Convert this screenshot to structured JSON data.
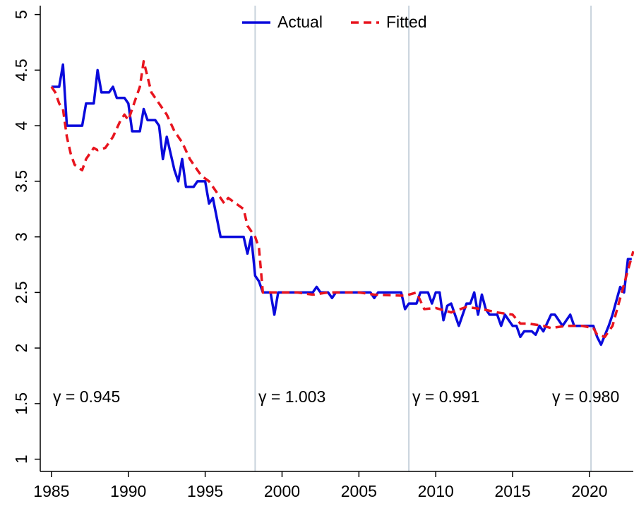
{
  "chart_data": {
    "type": "line",
    "xlim": [
      1984.27,
      2022.85
    ],
    "ylim": [
      0.89,
      5.08
    ],
    "xticks": [
      1985,
      1990,
      1995,
      2000,
      2005,
      2010,
      2015,
      2020
    ],
    "yticks": [
      1,
      1.5,
      2,
      2.5,
      3,
      3.5,
      4,
      4.5,
      5
    ],
    "legend": "top",
    "vlines": [
      1998.25,
      2008.25,
      2020.1
    ],
    "vline_color": "#c8d2dc",
    "annotations": [
      "γ = 0.945",
      "γ = 1.003",
      "γ = 0.991",
      "γ = 0.980"
    ],
    "series": [
      {
        "name": "Actual",
        "color": "#0a0adc",
        "dash": false,
        "x": [
          1985,
          1985.5,
          1985.75,
          1986,
          1987,
          1987.25,
          1987.75,
          1988,
          1988.25,
          1988.75,
          1989,
          1989.25,
          1989.75,
          1990,
          1990.25,
          1990.75,
          1991,
          1991.25,
          1991.75,
          1992,
          1992.25,
          1992.5,
          1993,
          1993.25,
          1993.5,
          1993.75,
          1994.25,
          1994.5,
          1995,
          1995.25,
          1995.5,
          1996,
          1997.5,
          1997.75,
          1998,
          1998.25,
          1998.5,
          1998.75,
          1999.25,
          1999.5,
          1999.75,
          2002,
          2002.25,
          2002.5,
          2003,
          2003.25,
          2003.5,
          2005.75,
          2006,
          2006.25,
          2007.75,
          2008,
          2008.25,
          2008.75,
          2009,
          2009.5,
          2009.75,
          2010,
          2010.25,
          2010.5,
          2010.75,
          2011,
          2011.5,
          2012,
          2012.25,
          2012.5,
          2012.75,
          2013,
          2013.25,
          2013.5,
          2014,
          2014.25,
          2014.5,
          2015,
          2015.25,
          2015.5,
          2015.75,
          2016.25,
          2016.5,
          2016.75,
          2017,
          2017.5,
          2017.75,
          2018.25,
          2018.75,
          2019,
          2020.25,
          2020.5,
          2020.75,
          2021.25,
          2021.5,
          2022,
          2022.25,
          2022.5,
          2022.75
        ],
        "values": [
          4.35,
          4.35,
          4.55,
          4.0,
          4.0,
          4.2,
          4.2,
          4.5,
          4.3,
          4.3,
          4.35,
          4.25,
          4.25,
          4.2,
          3.95,
          3.95,
          4.15,
          4.05,
          4.05,
          4.0,
          3.7,
          3.9,
          3.6,
          3.5,
          3.7,
          3.45,
          3.45,
          3.5,
          3.5,
          3.3,
          3.35,
          3.0,
          3.0,
          2.85,
          3.0,
          2.65,
          2.6,
          2.5,
          2.5,
          2.3,
          2.5,
          2.5,
          2.55,
          2.5,
          2.5,
          2.45,
          2.5,
          2.5,
          2.45,
          2.5,
          2.5,
          2.35,
          2.4,
          2.4,
          2.5,
          2.5,
          2.4,
          2.5,
          2.5,
          2.25,
          2.38,
          2.4,
          2.2,
          2.4,
          2.4,
          2.5,
          2.3,
          2.48,
          2.35,
          2.3,
          2.3,
          2.2,
          2.3,
          2.2,
          2.2,
          2.1,
          2.15,
          2.15,
          2.12,
          2.2,
          2.15,
          2.3,
          2.3,
          2.2,
          2.3,
          2.2,
          2.2,
          2.1,
          2.03,
          2.2,
          2.3,
          2.55,
          2.5,
          2.8,
          2.8
        ]
      },
      {
        "name": "Fitted",
        "color": "#e8141e",
        "dash": true,
        "x": [
          1985,
          1985.25,
          1985.5,
          1985.75,
          1986,
          1986.25,
          1986.5,
          1986.75,
          1987,
          1987.25,
          1987.5,
          1987.75,
          1988,
          1988.5,
          1989,
          1989.5,
          1989.75,
          1990,
          1990.5,
          1990.75,
          1991,
          1991.5,
          1992,
          1992.5,
          1993,
          1993.5,
          1994,
          1994.5,
          1994.75,
          1995.25,
          1995.75,
          1996.25,
          1996.5,
          1997,
          1997.5,
          1997.75,
          1998.25,
          1998.5,
          1998.75,
          2001,
          2002,
          2003,
          2004,
          2005,
          2006,
          2008,
          2008.75,
          2009.25,
          2010,
          2011,
          2012,
          2013,
          2014,
          2015,
          2015.5,
          2016,
          2017,
          2017.5,
          2018.5,
          2019.5,
          2020.25,
          2020.5,
          2021,
          2021.5,
          2022,
          2022.5,
          2022.85
        ],
        "values": [
          4.35,
          4.3,
          4.2,
          4.15,
          3.9,
          3.75,
          3.65,
          3.62,
          3.6,
          3.7,
          3.75,
          3.8,
          3.78,
          3.8,
          3.9,
          4.05,
          4.1,
          4.05,
          4.25,
          4.35,
          4.58,
          4.3,
          4.2,
          4.1,
          3.95,
          3.85,
          3.7,
          3.6,
          3.55,
          3.5,
          3.4,
          3.3,
          3.35,
          3.3,
          3.25,
          3.1,
          3.0,
          2.9,
          2.5,
          2.5,
          2.48,
          2.5,
          2.5,
          2.5,
          2.48,
          2.47,
          2.5,
          2.35,
          2.36,
          2.32,
          2.37,
          2.35,
          2.32,
          2.3,
          2.22,
          2.22,
          2.2,
          2.18,
          2.2,
          2.2,
          2.18,
          2.12,
          2.1,
          2.2,
          2.45,
          2.7,
          2.87
        ]
      }
    ]
  }
}
